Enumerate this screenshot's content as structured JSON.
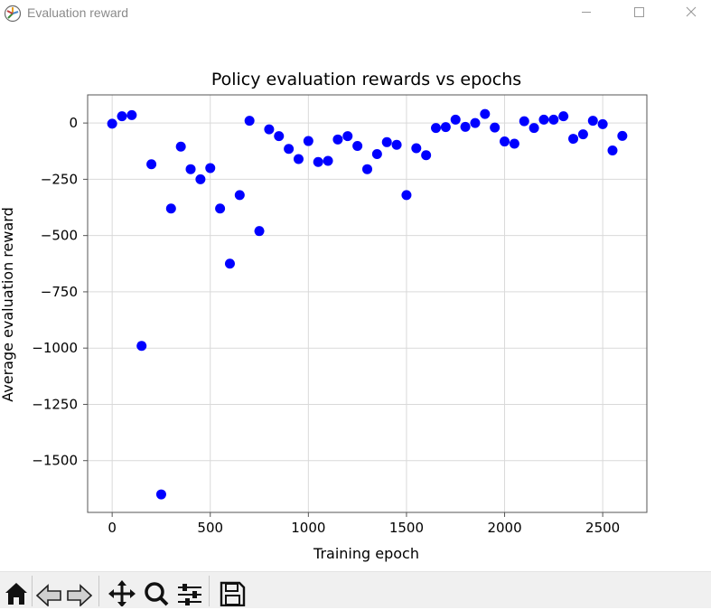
{
  "window": {
    "title": "Evaluation reward",
    "controls": [
      "minimize",
      "maximize",
      "close"
    ]
  },
  "colors": {
    "marker": "#0000ff",
    "grid": "#d9d9d9",
    "frame": "#555555",
    "toolbar_bg": "#f0f0f0"
  },
  "toolbar": {
    "icons": [
      "home-icon",
      "back-icon",
      "forward-icon",
      "pan-icon",
      "zoom-icon",
      "configure-subplots-icon",
      "save-icon"
    ]
  },
  "chart_data": {
    "type": "scatter",
    "title": "Policy evaluation rewards vs epochs",
    "xlabel": "Training epoch",
    "ylabel": "Average evaluation reward",
    "xlim": [
      -125,
      2725
    ],
    "ylim": [
      -1730,
      125
    ],
    "xticks": [
      0,
      500,
      1000,
      1500,
      2000,
      2500
    ],
    "yticks": [
      0,
      -250,
      -500,
      -750,
      -1000,
      -1250,
      -1500
    ],
    "ytick_labels": [
      "0",
      "−250",
      "−500",
      "−750",
      "−1000",
      "−1250",
      "−1500"
    ],
    "grid": true,
    "series": [
      {
        "x": [
          0,
          50,
          100,
          150,
          200,
          250,
          300,
          350,
          400,
          450,
          500,
          550,
          600,
          650,
          700,
          750,
          800,
          850,
          900,
          950,
          1000,
          1050,
          1100,
          1150,
          1200,
          1250,
          1300,
          1350,
          1400,
          1450,
          1500,
          1550,
          1600,
          1650,
          1700,
          1750,
          1800,
          1850,
          1900,
          1950,
          2000,
          2050,
          2100,
          2150,
          2200,
          2250,
          2300,
          2350,
          2400,
          2450,
          2500,
          2550,
          2600
        ],
        "y": [
          -3,
          30,
          35,
          -990,
          -183,
          -1650,
          -380,
          -105,
          -205,
          -250,
          -200,
          -380,
          -625,
          -320,
          10,
          -480,
          -28,
          -58,
          -115,
          -160,
          -80,
          -173,
          -168,
          -73,
          -58,
          -102,
          -205,
          -138,
          -85,
          -97,
          -320,
          -112,
          -143,
          -22,
          -18,
          15,
          -17,
          0,
          40,
          -20,
          -82,
          -92,
          8,
          -22,
          15,
          15,
          30,
          -70,
          -50,
          10,
          -5,
          -122,
          -57
        ]
      }
    ]
  }
}
